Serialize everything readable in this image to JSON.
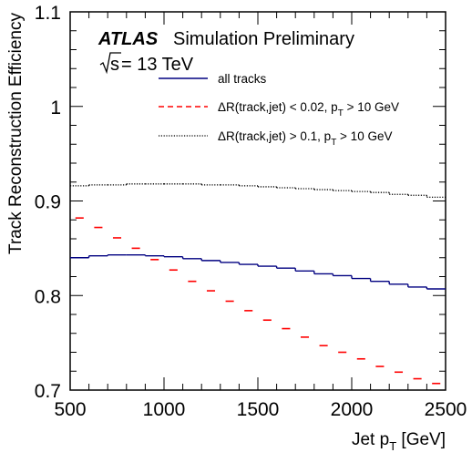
{
  "chart_data": {
    "type": "line",
    "xlabel": "Jet p",
    "xlabel_sub": "T",
    "xlabel_unit": " [GeV]",
    "ylabel": "Track Reconstruction Efficiency",
    "xlim": [
      500,
      2500
    ],
    "ylim": [
      0.7,
      1.1
    ],
    "x_ticks": [
      "500",
      "1000",
      "1500",
      "2000",
      "2500"
    ],
    "y_ticks": [
      "0.7",
      "0.8",
      "0.9",
      "1",
      "1.1"
    ],
    "grid": false,
    "legend_position": "top-right",
    "annotation": {
      "experiment": "ATLAS",
      "label": "Simulation Preliminary",
      "energy_sqrt": "s",
      "energy_rest": " = 13 TeV"
    },
    "series": [
      {
        "name": "all tracks",
        "color": "#000080",
        "style": "solid",
        "x": [
          550,
          650,
          750,
          850,
          950,
          1050,
          1150,
          1250,
          1350,
          1450,
          1550,
          1650,
          1750,
          1850,
          1950,
          2050,
          2150,
          2250,
          2350,
          2450
        ],
        "values": [
          0.84,
          0.842,
          0.843,
          0.843,
          0.842,
          0.841,
          0.839,
          0.837,
          0.835,
          0.833,
          0.831,
          0.829,
          0.826,
          0.823,
          0.821,
          0.818,
          0.815,
          0.812,
          0.809,
          0.807
        ]
      },
      {
        "name_parts": [
          "ΔR(track,jet) < 0.02, p",
          "T",
          " > 10 GeV"
        ],
        "color": "#ff0000",
        "style": "dashed",
        "x": [
          550,
          650,
          750,
          850,
          950,
          1050,
          1150,
          1250,
          1350,
          1450,
          1550,
          1650,
          1750,
          1850,
          1950,
          2050,
          2150,
          2250,
          2350,
          2450
        ],
        "values": [
          0.882,
          0.872,
          0.861,
          0.85,
          0.838,
          0.827,
          0.815,
          0.805,
          0.794,
          0.784,
          0.774,
          0.765,
          0.756,
          0.747,
          0.74,
          0.733,
          0.725,
          0.719,
          0.712,
          0.707
        ]
      },
      {
        "name_parts": [
          "ΔR(track,jet) > 0.1, p",
          "T",
          " > 10 GeV"
        ],
        "color": "#000000",
        "style": "dotted",
        "x": [
          550,
          650,
          750,
          850,
          950,
          1050,
          1150,
          1250,
          1350,
          1450,
          1550,
          1650,
          1750,
          1850,
          1950,
          2050,
          2150,
          2250,
          2350,
          2450
        ],
        "values": [
          0.916,
          0.917,
          0.917,
          0.918,
          0.918,
          0.918,
          0.918,
          0.917,
          0.917,
          0.916,
          0.915,
          0.914,
          0.913,
          0.912,
          0.911,
          0.91,
          0.909,
          0.907,
          0.906,
          0.904
        ]
      }
    ]
  }
}
